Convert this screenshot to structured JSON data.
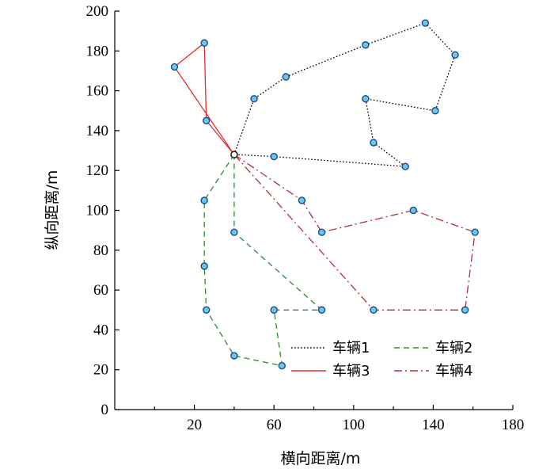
{
  "chart_data": {
    "type": "line",
    "title": "",
    "xlabel": "横向距离/m",
    "ylabel": "纵向距离/m",
    "xlim": [
      -20,
      180
    ],
    "ylim": [
      0,
      200
    ],
    "xticks": [
      "20",
      "60",
      "100",
      "140",
      "180"
    ],
    "xtick_values": [
      20,
      60,
      100,
      140,
      180
    ],
    "yticks": [
      "0",
      "20",
      "40",
      "60",
      "80",
      "100",
      "120",
      "140",
      "160",
      "180",
      "200"
    ],
    "ytick_values": [
      0,
      20,
      40,
      60,
      80,
      100,
      120,
      140,
      160,
      180,
      200
    ],
    "grid": false,
    "legend_position": "bottom-right",
    "depot": {
      "x": 40,
      "y": 128
    },
    "series": [
      {
        "name": "车辆1",
        "color": "#000000",
        "dash": "dotted",
        "points": [
          [
            40,
            128
          ],
          [
            50,
            156
          ],
          [
            66,
            167
          ],
          [
            106,
            183
          ],
          [
            136,
            194
          ],
          [
            151,
            178
          ],
          [
            141,
            150
          ],
          [
            106,
            156
          ],
          [
            110,
            134
          ],
          [
            126,
            122
          ],
          [
            60,
            127
          ],
          [
            40,
            128
          ]
        ]
      },
      {
        "name": "车辆2",
        "color": "#2e8b2e",
        "dash": "dashed",
        "points": [
          [
            40,
            128
          ],
          [
            25,
            105
          ],
          [
            25,
            72
          ],
          [
            26,
            50
          ],
          [
            40,
            27
          ],
          [
            64,
            22
          ],
          [
            60,
            50
          ],
          [
            84,
            50
          ],
          [
            40,
            89
          ],
          [
            40,
            128
          ]
        ]
      },
      {
        "name": "车辆3",
        "color": "#e03030",
        "dash": "solid",
        "points": [
          [
            40,
            128
          ],
          [
            10,
            172
          ],
          [
            25,
            184
          ],
          [
            26,
            145
          ],
          [
            40,
            128
          ]
        ]
      },
      {
        "name": "车辆4",
        "color": "#b03030",
        "dash": "dashdot",
        "points": [
          [
            40,
            128
          ],
          [
            74,
            105
          ],
          [
            84,
            89
          ],
          [
            130,
            100
          ],
          [
            161,
            89
          ],
          [
            156,
            50
          ],
          [
            110,
            50
          ],
          [
            40,
            128
          ]
        ]
      }
    ]
  }
}
